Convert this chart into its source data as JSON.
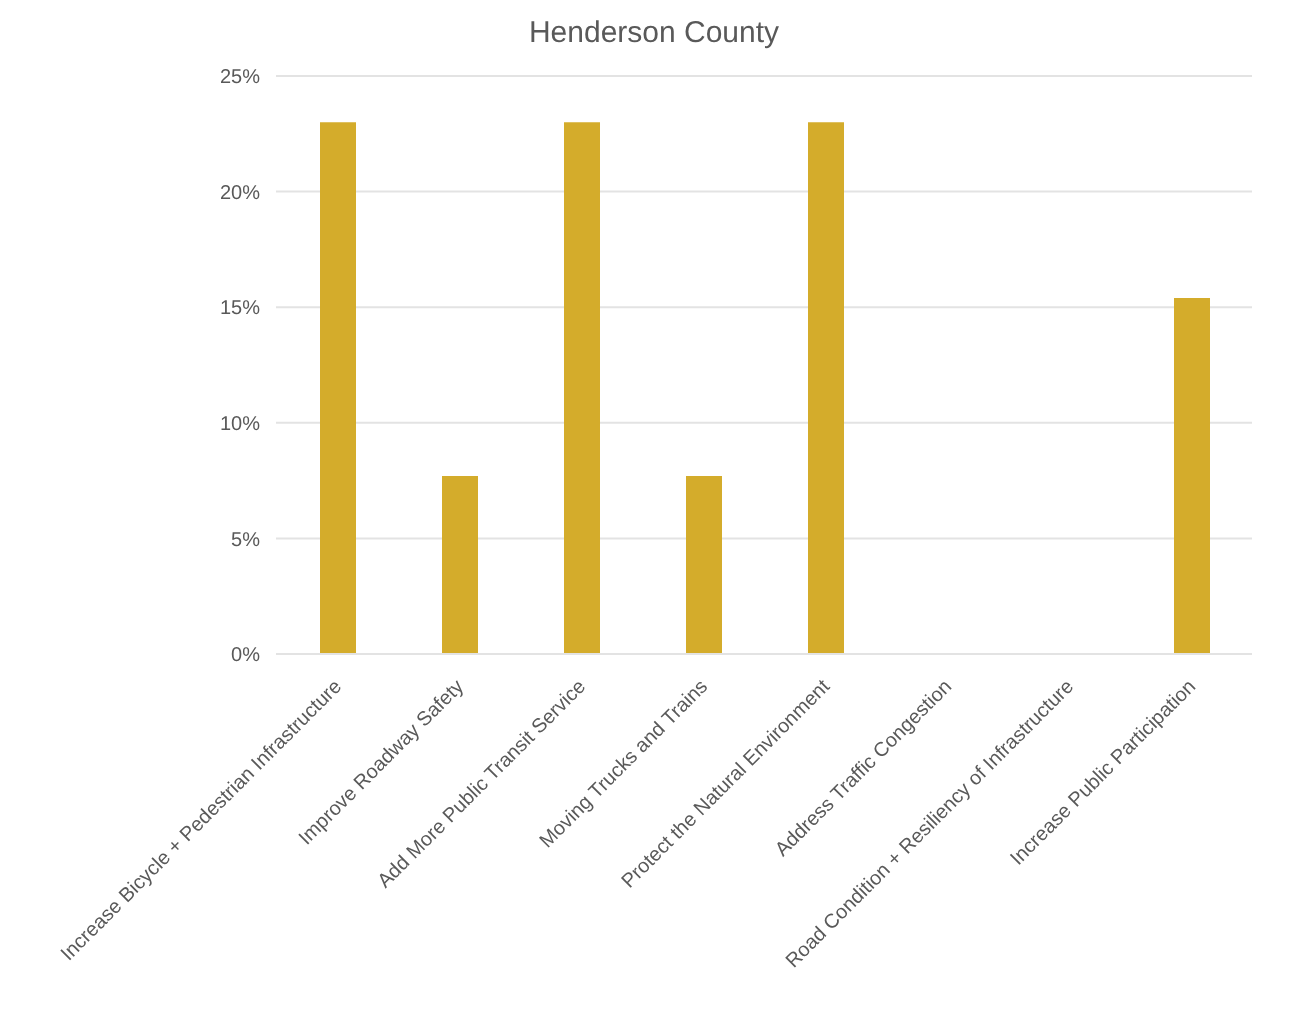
{
  "chart_data": {
    "type": "bar",
    "title": "Henderson County",
    "categories": [
      "Increase Bicycle + Pedestrian Infrastructure",
      "Improve Roadway Safety",
      "Add More Public Transit Service",
      "Moving Trucks and Trains",
      "Protect the Natural Environment",
      "Address Traffic Congestion",
      "Road Condition + Resiliency of Infrastructure",
      "Increase Public Participation"
    ],
    "values": [
      23,
      7.7,
      23,
      7.7,
      23,
      0,
      0,
      15.4
    ],
    "color": "#d4ac2b",
    "ylim": [
      0,
      25
    ],
    "yticks": [
      {
        "value": 0,
        "label": "0%"
      },
      {
        "value": 5,
        "label": "5%"
      },
      {
        "value": 10,
        "label": "10%"
      },
      {
        "value": 15,
        "label": "15%"
      },
      {
        "value": 20,
        "label": "20%"
      },
      {
        "value": 25,
        "label": "25%"
      }
    ],
    "grid": "y"
  }
}
